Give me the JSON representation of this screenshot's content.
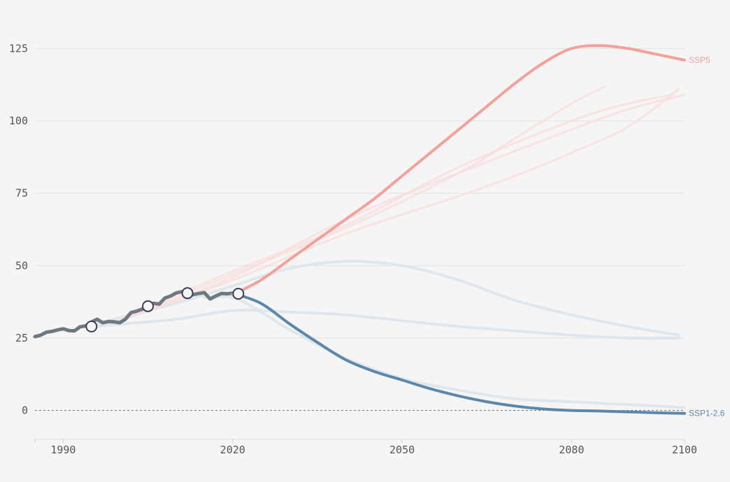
{
  "chart_data": {
    "type": "line",
    "title": "",
    "xlabel": "",
    "ylabel": "",
    "xlim": [
      1985,
      2100
    ],
    "ylim": [
      -10,
      135
    ],
    "x_ticks": [
      1990,
      2020,
      2050,
      2080,
      2100
    ],
    "y_ticks": [
      0,
      25,
      50,
      75,
      100,
      125
    ],
    "grid": "horizontal",
    "legend": "none",
    "colors": {
      "historical": "#6d7880",
      "ssp5": "#f4a09b",
      "ssp1": "#5b88aa",
      "faded_high": "#f9dcd9",
      "faded_low": "#dde6ec",
      "markers": "#3b3f57"
    },
    "series": [
      {
        "role": "historical",
        "x": [
          1985,
          1986,
          1987,
          1988,
          1989,
          1990,
          1991,
          1992,
          1993,
          1994,
          1995,
          1996,
          1997,
          1998,
          1999,
          2000,
          2001,
          2002,
          2003,
          2004,
          2005,
          2006,
          2007,
          2008,
          2009,
          2010,
          2011,
          2012,
          2013,
          2014,
          2015,
          2016,
          2017,
          2018,
          2019,
          2020,
          2021
        ],
        "y": [
          25.5,
          26,
          27,
          27.3,
          27.8,
          28.2,
          27.6,
          27.5,
          28.9,
          29.2,
          30.5,
          31.5,
          30.3,
          30.7,
          30.6,
          30.3,
          31.5,
          33.8,
          34.3,
          35,
          36.5,
          37,
          36.7,
          38.8,
          39.5,
          40.6,
          41,
          39.5,
          40,
          40.4,
          40.7,
          38.5,
          39.5,
          40.4,
          40.3,
          40.5,
          40.8
        ]
      },
      {
        "role": "highlight-high",
        "name": "SSP5",
        "x": [
          2020,
          2025,
          2030,
          2035,
          2040,
          2045,
          2050,
          2055,
          2060,
          2065,
          2070,
          2075,
          2080,
          2085,
          2090,
          2095,
          2100
        ],
        "y": [
          40,
          45,
          52,
          59,
          66,
          73,
          81,
          89,
          97,
          105,
          113,
          120,
          125,
          126,
          125,
          123,
          121
        ]
      },
      {
        "role": "highlight-low",
        "name": "SSP1-2.6",
        "x": [
          2020,
          2025,
          2030,
          2035,
          2040,
          2045,
          2050,
          2055,
          2060,
          2065,
          2070,
          2075,
          2080,
          2085,
          2090,
          2095,
          2100
        ],
        "y": [
          40.5,
          37,
          30,
          23.5,
          17.5,
          13.5,
          10.5,
          7.5,
          5,
          3,
          1.5,
          0.5,
          0,
          -0.2,
          -0.5,
          -0.8,
          -1
        ]
      },
      {
        "role": "faded-high",
        "x": [
          2000,
          2020,
          2040,
          2060,
          2080,
          2090,
          2098
        ],
        "y": [
          32,
          48,
          64,
          84,
          100,
          106,
          109
        ]
      },
      {
        "role": "faded-high",
        "x": [
          2000,
          2020,
          2040,
          2060,
          2070,
          2080,
          2086
        ],
        "y": [
          31,
          47,
          63,
          82,
          94,
          106,
          112
        ]
      },
      {
        "role": "faded-high",
        "x": [
          2000,
          2020,
          2040,
          2060,
          2080,
          2090,
          2100
        ],
        "y": [
          31,
          46,
          66,
          82,
          97,
          104,
          109
        ]
      },
      {
        "role": "faded-high",
        "x": [
          2000,
          2020,
          2040,
          2060,
          2070,
          2080,
          2090,
          2099
        ],
        "y": [
          31,
          45,
          61,
          74,
          81,
          89,
          98,
          111
        ]
      },
      {
        "role": "faded-low",
        "x": [
          1995,
          2010,
          2020,
          2030,
          2040,
          2050,
          2060,
          2070,
          2080,
          2090,
          2099
        ],
        "y": [
          29.5,
          37,
          43,
          49,
          51.5,
          50,
          45,
          38,
          33,
          29,
          26
        ]
      },
      {
        "role": "faded-low",
        "x": [
          1995,
          2010,
          2020,
          2030,
          2040,
          2050,
          2060,
          2070,
          2080,
          2090,
          2099
        ],
        "y": [
          29,
          31.5,
          34.5,
          34,
          33,
          31,
          29,
          27.5,
          26,
          25,
          25
        ]
      },
      {
        "role": "faded-low",
        "x": [
          2015,
          2020,
          2025,
          2030,
          2040,
          2050,
          2060,
          2070,
          2080,
          2090,
          2100
        ],
        "y": [
          39,
          39,
          34,
          28,
          18,
          11,
          7,
          4,
          3,
          2,
          1
        ]
      }
    ],
    "markers": [
      {
        "x": 1995,
        "y": 29
      },
      {
        "x": 2005,
        "y": 36
      },
      {
        "x": 2012,
        "y": 40.5
      },
      {
        "x": 2021,
        "y": 40.3
      }
    ]
  }
}
